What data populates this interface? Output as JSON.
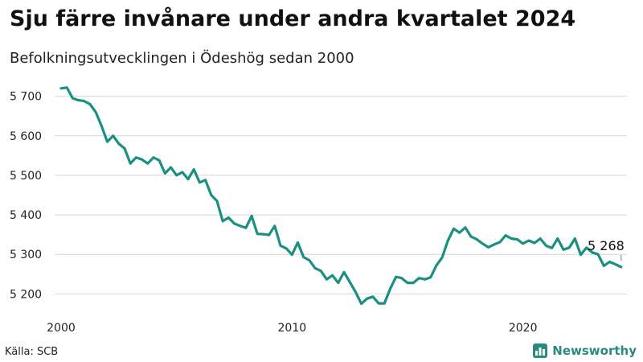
{
  "chart_data": {
    "type": "line",
    "title": "Sju färre invånare under andra kvartalet 2024",
    "subtitle": "Befolkningsutvecklingen i Ödeshög sedan 2000",
    "source": "Källa: SCB",
    "brand": "Newsworthy",
    "end_label": "5 268",
    "color": "#1a9081",
    "grid": true,
    "xlim": [
      2000.0,
      2024.5
    ],
    "ylim": [
      5160,
      5740
    ],
    "x_ticks": [
      {
        "value": 2000,
        "label": "2000"
      },
      {
        "value": 2010,
        "label": "2010"
      },
      {
        "value": 2020,
        "label": "2020"
      }
    ],
    "y_ticks": [
      {
        "value": 5200,
        "label": "5 200"
      },
      {
        "value": 5300,
        "label": "5 300"
      },
      {
        "value": 5400,
        "label": "5 400"
      },
      {
        "value": 5500,
        "label": "5 500"
      },
      {
        "value": 5600,
        "label": "5 600"
      },
      {
        "value": 5700,
        "label": "5 700"
      }
    ],
    "series": [
      {
        "x": [
          2000.0,
          2000.25,
          2000.5,
          2000.75,
          2001.0,
          2001.25,
          2001.5,
          2001.75,
          2002.0,
          2002.25,
          2002.5,
          2002.75,
          2003.0,
          2003.25,
          2003.5,
          2003.75,
          2004.0,
          2004.25,
          2004.5,
          2004.75,
          2005.0,
          2005.25,
          2005.5,
          2005.75,
          2006.0,
          2006.25,
          2006.5,
          2006.75,
          2007.0,
          2007.25,
          2007.5,
          2007.75,
          2008.0,
          2008.25,
          2008.5,
          2008.75,
          2009.0,
          2009.25,
          2009.5,
          2009.75,
          2010.0,
          2010.25,
          2010.5,
          2010.75,
          2011.0,
          2011.25,
          2011.5,
          2011.75,
          2012.0,
          2012.25,
          2012.5,
          2012.75,
          2013.0,
          2013.25,
          2013.5,
          2013.75,
          2014.0,
          2014.25,
          2014.5,
          2014.75,
          2015.0,
          2015.25,
          2015.5,
          2015.75,
          2016.0,
          2016.25,
          2016.5,
          2016.75,
          2017.0,
          2017.25,
          2017.5,
          2017.75,
          2018.0,
          2018.25,
          2018.5,
          2018.75,
          2019.0,
          2019.25,
          2019.5,
          2019.75,
          2020.0,
          2020.25,
          2020.5,
          2020.75,
          2021.0,
          2021.25,
          2021.5,
          2021.75,
          2022.0,
          2022.25,
          2022.5,
          2022.75,
          2023.0,
          2023.25,
          2023.5,
          2023.75,
          2024.0,
          2024.25
        ],
        "values": [
          5720,
          5722,
          5695,
          5690,
          5688,
          5680,
          5660,
          5625,
          5585,
          5600,
          5580,
          5568,
          5530,
          5545,
          5540,
          5530,
          5545,
          5538,
          5505,
          5520,
          5500,
          5508,
          5490,
          5515,
          5482,
          5488,
          5450,
          5435,
          5384,
          5393,
          5378,
          5372,
          5367,
          5397,
          5352,
          5351,
          5349,
          5372,
          5322,
          5315,
          5299,
          5330,
          5293,
          5285,
          5265,
          5258,
          5237,
          5247,
          5228,
          5255,
          5230,
          5205,
          5175,
          5188,
          5193,
          5176,
          5176,
          5213,
          5243,
          5240,
          5228,
          5228,
          5240,
          5237,
          5242,
          5272,
          5292,
          5335,
          5365,
          5355,
          5368,
          5345,
          5338,
          5327,
          5318,
          5325,
          5331,
          5348,
          5340,
          5338,
          5327,
          5335,
          5329,
          5340,
          5322,
          5316,
          5340,
          5312,
          5317,
          5340,
          5299,
          5317,
          5305,
          5300,
          5271,
          5281,
          5275,
          5268
        ]
      }
    ]
  }
}
